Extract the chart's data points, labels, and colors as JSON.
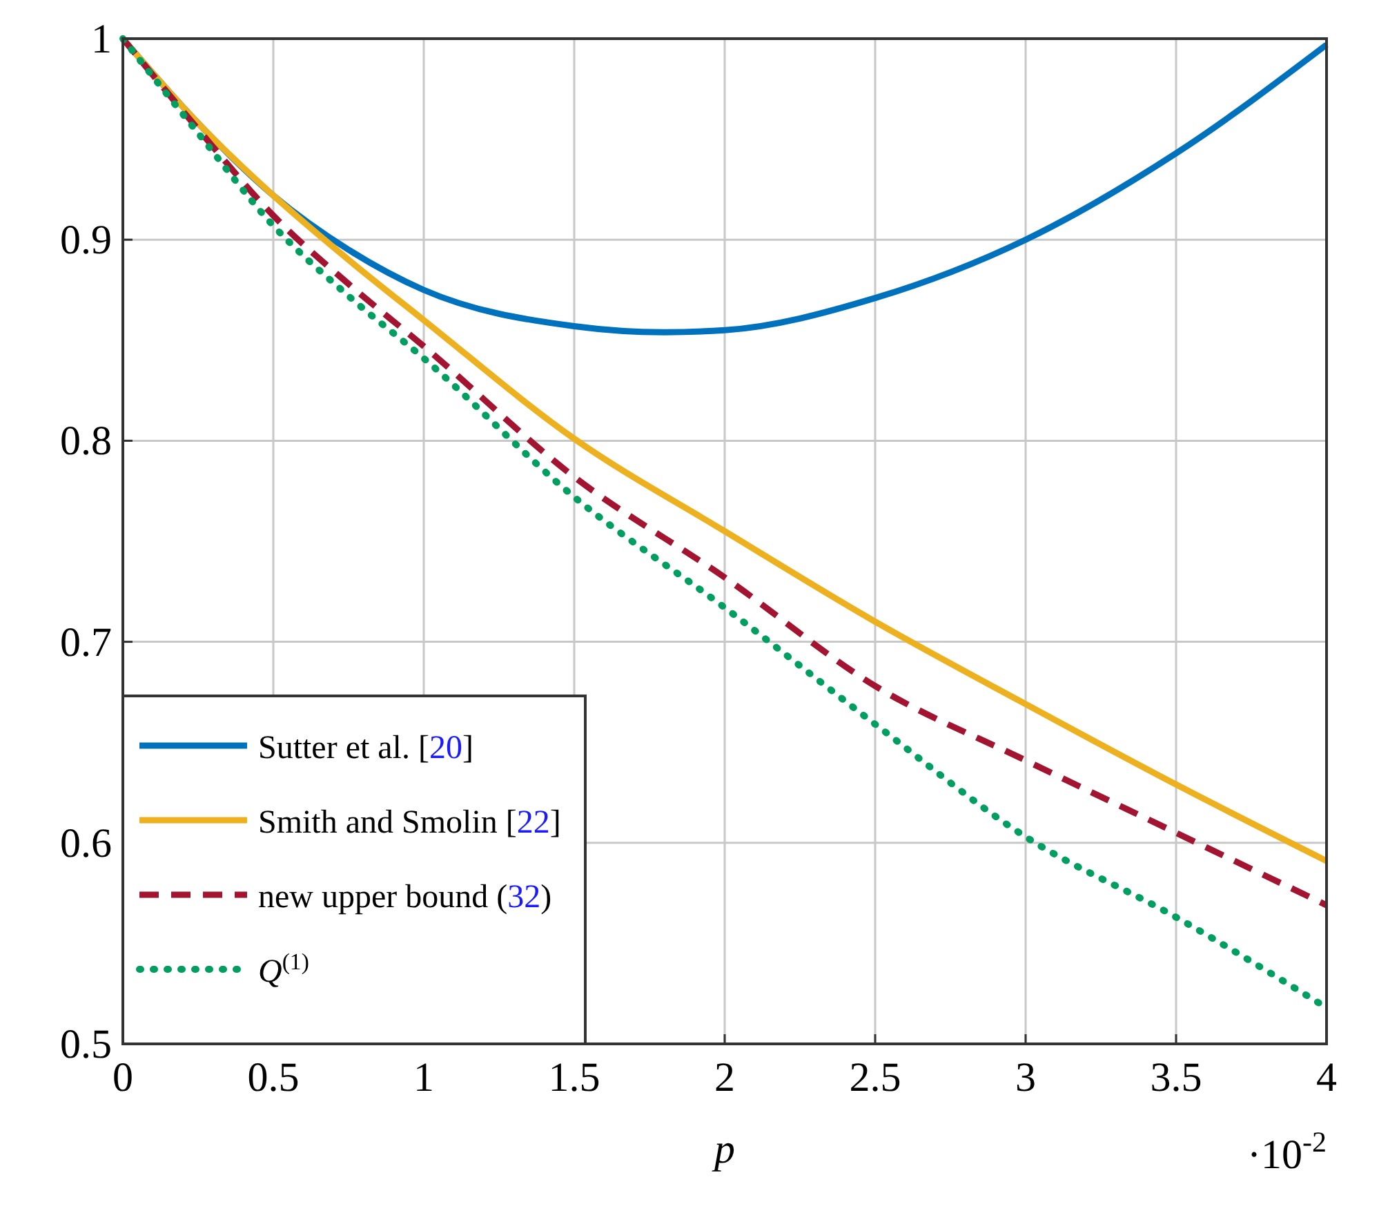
{
  "chart_data": {
    "type": "line",
    "xlabel": "p",
    "annotations": [
      "·10$^{-2}$"
    ],
    "xlim": [
      0,
      4
    ],
    "ylim": [
      0.5,
      1
    ],
    "xticks": [
      0,
      0.5,
      1,
      1.5,
      2,
      2.5,
      3,
      3.5,
      4
    ],
    "yticks": [
      0.5,
      0.6,
      0.7,
      0.8,
      0.9,
      1
    ],
    "grid": true,
    "legend": "bottom left",
    "x": [
      0,
      0.25,
      0.5,
      0.75,
      1,
      1.5,
      1.8,
      2,
      2.5,
      3,
      3.5,
      4
    ],
    "series": [
      {
        "name": "Sutter et al. [20]",
        "color": "#0072bd",
        "line_style": "solid",
        "values": [
          1,
          0.958,
          0.922,
          0.895,
          0.875,
          0.857,
          0.854,
          0.855,
          0.871,
          0.9,
          0.943,
          0.997
        ]
      },
      {
        "name": "Smith and Smolin [22]",
        "color": "#edb120",
        "line_style": "solid",
        "values": [
          1,
          0.958,
          0.922,
          0.89,
          0.86,
          0.801,
          null,
          0.755,
          0.71,
          0.669,
          0.629,
          0.591
        ]
      },
      {
        "name": "new upper bound (32)",
        "color": "#a2142f",
        "line_style": "dashed",
        "values": [
          1,
          0.955,
          0.912,
          0.878,
          0.847,
          0.782,
          null,
          0.732,
          0.678,
          0.641,
          0.605,
          0.569
        ]
      },
      {
        "name": "Q$^{(1)}$",
        "color": "#009e60",
        "line_style": "dotted",
        "values": [
          1,
          0.953,
          0.907,
          0.872,
          0.841,
          0.772,
          null,
          0.717,
          0.659,
          0.603,
          0.563,
          0.518
        ]
      }
    ]
  }
}
